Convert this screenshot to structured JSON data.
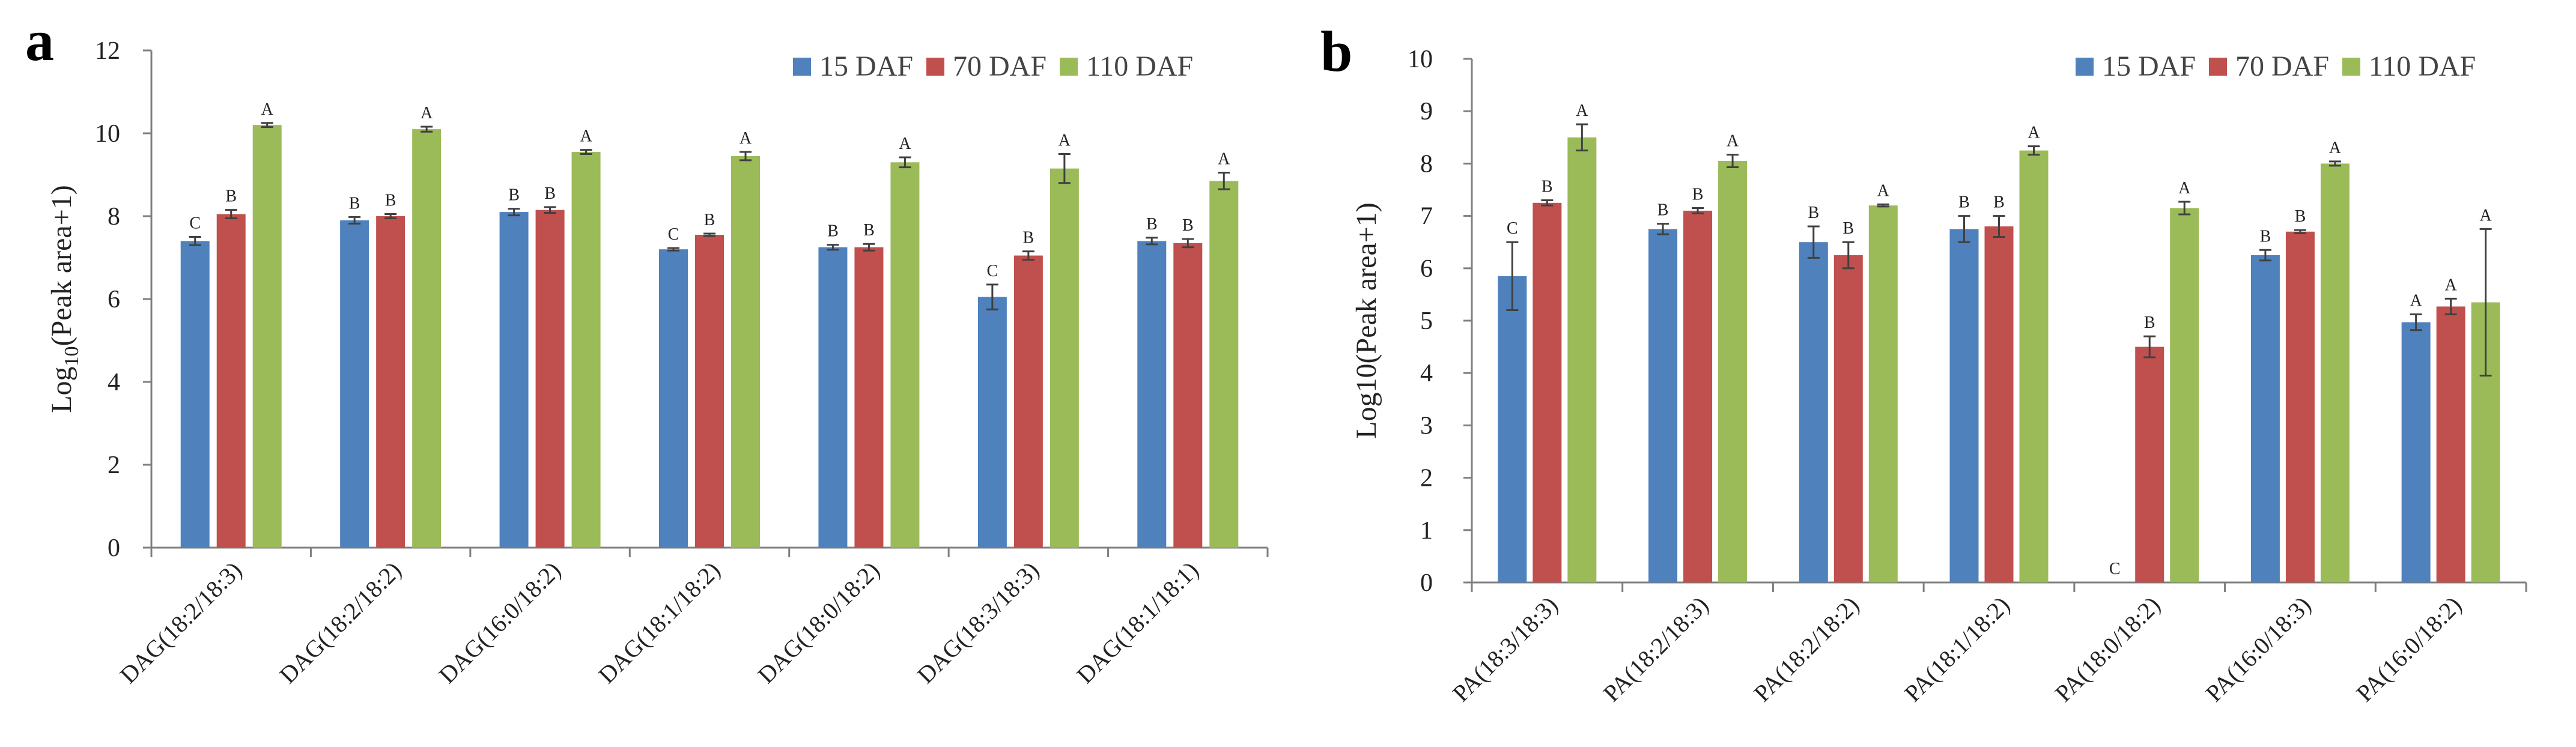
{
  "chart_data": [
    {
      "panel": "a",
      "type": "bar",
      "ylabel_main": "Log",
      "ylabel_sub": "10",
      "ylabel_rest": "(Peak area+1)",
      "ylim": [
        0,
        12
      ],
      "yticks": [
        0,
        2,
        4,
        6,
        8,
        10,
        12
      ],
      "legend_position": "top-right",
      "categories": [
        "DAG(18:2/18:3)",
        "DAG(18:2/18:2)",
        "DAG(16:0/18:2)",
        "DAG(18:1/18:2)",
        "DAG(18:0/18:2)",
        "DAG(18:3/18:3)",
        "DAG(18:1/18:1)"
      ],
      "series": [
        {
          "name": "15 DAF",
          "color": "#4F81BD",
          "values": [
            7.4,
            7.9,
            8.1,
            7.2,
            7.25,
            6.05,
            7.4
          ],
          "errors": [
            0.1,
            0.08,
            0.08,
            0.03,
            0.06,
            0.3,
            0.08
          ],
          "letters": [
            "C",
            "B",
            "B",
            "C",
            "B",
            "C",
            "B"
          ]
        },
        {
          "name": "70 DAF",
          "color": "#C0504D",
          "values": [
            8.05,
            8.0,
            8.15,
            7.55,
            7.25,
            7.05,
            7.35
          ],
          "errors": [
            0.1,
            0.05,
            0.07,
            0.03,
            0.08,
            0.1,
            0.1
          ],
          "letters": [
            "B",
            "B",
            "B",
            "B",
            "B",
            "B",
            "B"
          ]
        },
        {
          "name": "110 DAF",
          "color": "#9BBB59",
          "values": [
            10.2,
            10.1,
            9.55,
            9.45,
            9.3,
            9.15,
            8.85
          ],
          "errors": [
            0.05,
            0.06,
            0.05,
            0.1,
            0.12,
            0.35,
            0.2
          ],
          "letters": [
            "A",
            "A",
            "A",
            "A",
            "A",
            "A",
            "A"
          ]
        }
      ]
    },
    {
      "panel": "b",
      "type": "bar",
      "ylabel_main": "Log10(Peak area+1)",
      "ylabel_sub": "",
      "ylabel_rest": "",
      "ylim": [
        0,
        10
      ],
      "yticks": [
        0,
        1,
        2,
        3,
        4,
        5,
        6,
        7,
        8,
        9,
        10
      ],
      "legend_position": "top-right",
      "categories": [
        "PA(18:3/18:3)",
        "PA(18:2/18:3)",
        "PA(18:2/18:2)",
        "PA(18:1/18:2)",
        "PA(18:0/18:2)",
        "PA(16:0/18:3)",
        "PA(16:0/18:2)"
      ],
      "series": [
        {
          "name": "15 DAF",
          "color": "#4F81BD",
          "values": [
            5.85,
            6.75,
            6.5,
            6.75,
            0,
            6.25,
            4.97
          ],
          "errors": [
            0.65,
            0.1,
            0.3,
            0.25,
            0,
            0.1,
            0.15
          ],
          "letters": [
            "C",
            "B",
            "B",
            "B",
            "C",
            "B",
            "A"
          ]
        },
        {
          "name": "70 DAF",
          "color": "#C0504D",
          "values": [
            7.25,
            7.1,
            6.25,
            6.8,
            4.5,
            6.7,
            5.27
          ],
          "errors": [
            0.05,
            0.05,
            0.25,
            0.2,
            0.2,
            0.03,
            0.15
          ],
          "letters": [
            "B",
            "B",
            "B",
            "B",
            "B",
            "B",
            "A"
          ]
        },
        {
          "name": "110 DAF",
          "color": "#9BBB59",
          "values": [
            8.5,
            8.05,
            7.2,
            8.25,
            7.15,
            8.0,
            5.35
          ],
          "errors": [
            0.25,
            0.12,
            0.02,
            0.08,
            0.12,
            0.04,
            1.4
          ],
          "letters": [
            "A",
            "A",
            "A",
            "A",
            "A",
            "A",
            "A"
          ]
        }
      ]
    }
  ]
}
